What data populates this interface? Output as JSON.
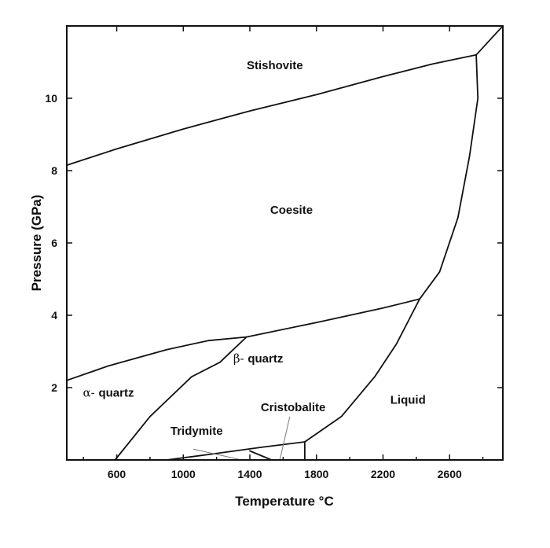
{
  "chart_data": {
    "type": "phase-diagram",
    "xlabel": "Temperature °C",
    "ylabel": "Pressure (GPa)",
    "xlim": [
      300,
      2920
    ],
    "ylim": [
      0,
      12
    ],
    "x_ticks": [
      600,
      1000,
      1400,
      1800,
      2200,
      2600
    ],
    "y_ticks": [
      2,
      4,
      6,
      8,
      10
    ],
    "grid": false,
    "regions": [
      {
        "name": "stishovite",
        "label": "Stishovite",
        "x": 1550,
        "y": 10.8
      },
      {
        "name": "coesite",
        "label": "Coesite",
        "x": 1650,
        "y": 6.8
      },
      {
        "name": "beta-quartz",
        "greek": "β-",
        "label": "quartz",
        "x": 1450,
        "y": 2.7
      },
      {
        "name": "alpha-quartz",
        "greek": "α-",
        "label": "quartz",
        "x": 550,
        "y": 1.75
      },
      {
        "name": "cristobalite",
        "label": "Cristobalite",
        "x": 1660,
        "y": 1.35
      },
      {
        "name": "tridymite",
        "label": "Tridymite",
        "x": 1080,
        "y": 0.7
      },
      {
        "name": "liquid",
        "label": "Liquid",
        "x": 2350,
        "y": 1.55
      }
    ],
    "boundaries": [
      {
        "name": "stishovite-coesite",
        "points": [
          [
            300,
            8.15
          ],
          [
            600,
            8.6
          ],
          [
            1000,
            9.15
          ],
          [
            1400,
            9.65
          ],
          [
            1800,
            10.1
          ],
          [
            2200,
            10.6
          ],
          [
            2500,
            10.95
          ],
          [
            2760,
            11.2
          ]
        ]
      },
      {
        "name": "coesite-quartz",
        "points": [
          [
            300,
            2.2
          ],
          [
            550,
            2.6
          ],
          [
            900,
            3.05
          ],
          [
            1150,
            3.3
          ],
          [
            1380,
            3.4
          ],
          [
            1800,
            3.8
          ],
          [
            2200,
            4.2
          ],
          [
            2420,
            4.45
          ]
        ]
      },
      {
        "name": "alpha-beta-quartz",
        "points": [
          [
            590,
            0
          ],
          [
            800,
            1.2
          ],
          [
            1050,
            2.3
          ],
          [
            1220,
            2.7
          ],
          [
            1300,
            3.05
          ],
          [
            1380,
            3.4
          ]
        ]
      },
      {
        "name": "quartz-liquid",
        "points": [
          [
            1730,
            0.5
          ],
          [
            1950,
            1.2
          ],
          [
            2150,
            2.3
          ],
          [
            2280,
            3.2
          ],
          [
            2420,
            4.45
          ]
        ]
      },
      {
        "name": "coesite-liquid",
        "points": [
          [
            2420,
            4.45
          ],
          [
            2540,
            5.2
          ],
          [
            2650,
            6.7
          ],
          [
            2720,
            8.4
          ],
          [
            2770,
            10.0
          ],
          [
            2760,
            11.2
          ]
        ]
      },
      {
        "name": "stishovite-liquid",
        "points": [
          [
            2760,
            11.2
          ],
          [
            2920,
            12
          ]
        ]
      },
      {
        "name": "cristobalite-liquid-bottom",
        "points": [
          [
            1730,
            0.5
          ],
          [
            1730,
            0
          ]
        ]
      },
      {
        "name": "tridymite-cristobalite",
        "points": [
          [
            900,
            0
          ],
          [
            1150,
            0.15
          ],
          [
            1470,
            0.35
          ],
          [
            1730,
            0.5
          ]
        ]
      },
      {
        "name": "tridymite-beta-quartz",
        "points": [
          [
            1400,
            0.25
          ],
          [
            1530,
            0
          ]
        ]
      }
    ],
    "leaders": [
      {
        "from": [
          1640,
          1.2
        ],
        "to": [
          1580,
          0
        ]
      },
      {
        "from": [
          1060,
          0.3
        ],
        "to": [
          1350,
          0
        ]
      }
    ]
  }
}
